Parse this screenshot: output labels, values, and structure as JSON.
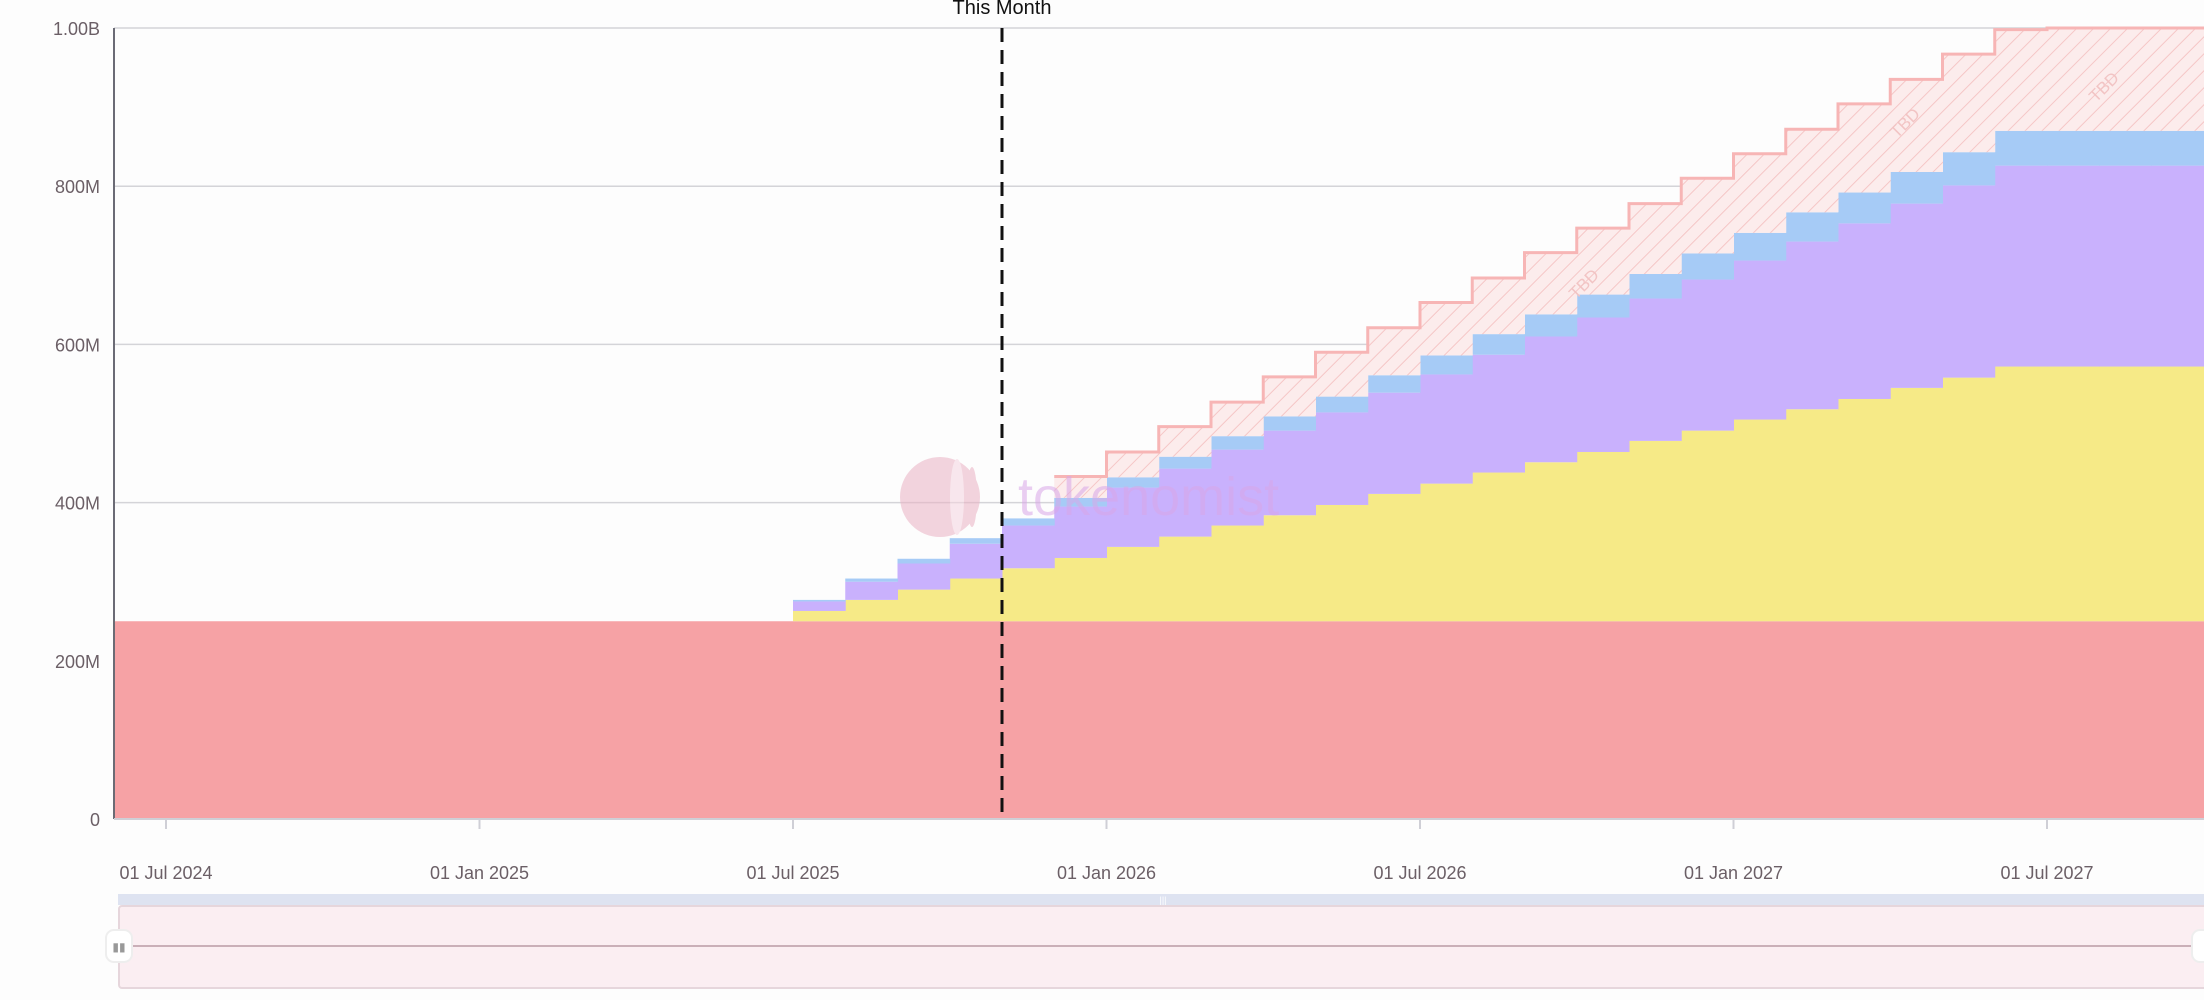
{
  "chart_data": {
    "type": "area",
    "step": true,
    "stacked": true,
    "ylim": [
      0,
      1000
    ],
    "y_unit": "M",
    "y_ticks": [
      {
        "v": 0,
        "label": "0"
      },
      {
        "v": 200,
        "label": "200M"
      },
      {
        "v": 400,
        "label": "400M"
      },
      {
        "v": 600,
        "label": "600M"
      },
      {
        "v": 800,
        "label": "800M"
      },
      {
        "v": 1000,
        "label": "1.00B"
      }
    ],
    "x_ticks": [
      "01 Jul 2024",
      "01 Jan 2025",
      "01 Jul 2025",
      "01 Jan 2026",
      "01 Jul 2026",
      "01 Jan 2027",
      "01 Jul 2027"
    ],
    "x_range": [
      "2024-06",
      "2027-10"
    ],
    "grid": true,
    "marker": {
      "label": "This Month",
      "month": "2025-11"
    },
    "base_series": {
      "color": "#f6a2a5",
      "start": "2024-06",
      "value": 250
    },
    "months": [
      "2025-07",
      "2025-08",
      "2025-09",
      "2025-10",
      "2025-11",
      "2025-12",
      "2026-01",
      "2026-02",
      "2026-03",
      "2026-04",
      "2026-05",
      "2026-06",
      "2026-07",
      "2026-08",
      "2026-09",
      "2026-10",
      "2026-11",
      "2026-12",
      "2027-01",
      "2027-02",
      "2027-03",
      "2027-04",
      "2027-05",
      "2027-06",
      "2027-07",
      "2027-08",
      "2027-09",
      "2027-10"
    ],
    "series": [
      {
        "color": "#f6ea87",
        "values": [
          13,
          27,
          40,
          54,
          67,
          80,
          94,
          107,
          121,
          134,
          147,
          161,
          174,
          188,
          201,
          214,
          228,
          241,
          255,
          268,
          281,
          295,
          308,
          322,
          322,
          322,
          322,
          322
        ]
      },
      {
        "color": "#c9b1fd",
        "values": [
          12,
          23,
          33,
          44,
          54,
          65,
          75,
          86,
          96,
          107,
          117,
          128,
          138,
          149,
          159,
          170,
          180,
          191,
          201,
          212,
          222,
          233,
          243,
          254,
          254,
          254,
          254,
          254
        ]
      },
      {
        "color": "#a6cbf6",
        "values": [
          2,
          4,
          6,
          7,
          9,
          11,
          13,
          15,
          17,
          18,
          20,
          22,
          24,
          26,
          28,
          29,
          31,
          33,
          35,
          37,
          39,
          40,
          42,
          44,
          44,
          44,
          44,
          44
        ]
      },
      {
        "color": "#f7b5b5",
        "hatched": true,
        "label": "TBD",
        "values": [
          0,
          0,
          0,
          0,
          0,
          27,
          32,
          38,
          43,
          50,
          56,
          60,
          67,
          71,
          78,
          84,
          89,
          95,
          100,
          105,
          112,
          117,
          124,
          128,
          130,
          130,
          130,
          130
        ]
      }
    ],
    "annotations": [
      "TBD",
      "TBD",
      "TBD"
    ]
  },
  "watermark": "tokenomist"
}
